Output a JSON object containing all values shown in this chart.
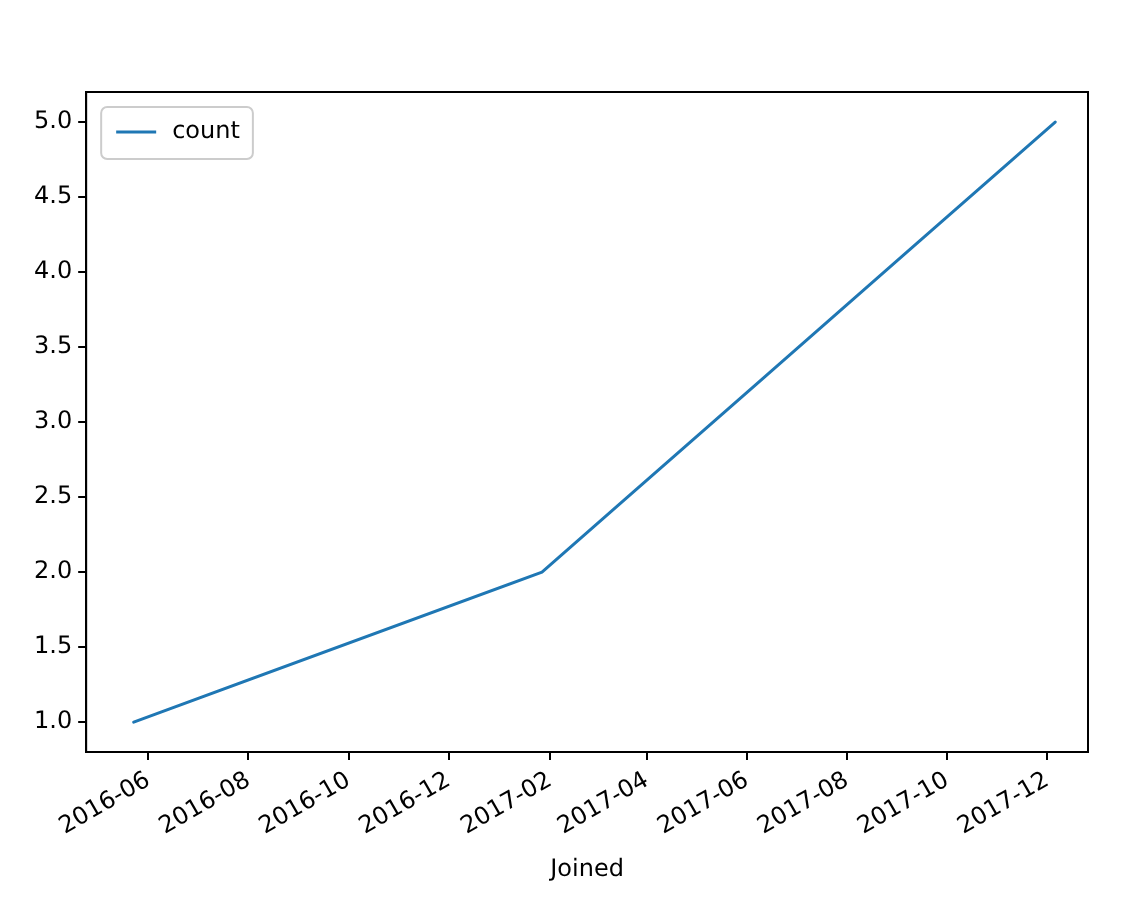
{
  "chart_data": {
    "type": "line",
    "xlabel": "Joined",
    "x": [
      "2016-05-23",
      "2017-01-27",
      "2017-12-06"
    ],
    "series": [
      {
        "name": "count",
        "color": "#1f77b4",
        "values": [
          1,
          2,
          5
        ]
      }
    ],
    "xlim": [
      "2016-04-24",
      "2017-12-26"
    ],
    "xticks": [
      {
        "value": "2016-06-01",
        "label": "2016-06"
      },
      {
        "value": "2016-08-01",
        "label": "2016-08"
      },
      {
        "value": "2016-10-01",
        "label": "2016-10"
      },
      {
        "value": "2016-12-01",
        "label": "2016-12"
      },
      {
        "value": "2017-02-01",
        "label": "2017-02"
      },
      {
        "value": "2017-04-01",
        "label": "2017-04"
      },
      {
        "value": "2017-06-01",
        "label": "2017-06"
      },
      {
        "value": "2017-08-01",
        "label": "2017-08"
      },
      {
        "value": "2017-10-01",
        "label": "2017-10"
      },
      {
        "value": "2017-12-01",
        "label": "2017-12"
      }
    ],
    "ylim": [
      0.8,
      5.2
    ],
    "yticks": [
      {
        "value": 1,
        "label": "1.0"
      },
      {
        "value": 1.5,
        "label": "1.5"
      },
      {
        "value": 2,
        "label": "2.0"
      },
      {
        "value": 2.5,
        "label": "2.5"
      },
      {
        "value": 3,
        "label": "3.0"
      },
      {
        "value": 3.5,
        "label": "3.5"
      },
      {
        "value": 4,
        "label": "4.0"
      },
      {
        "value": 4.5,
        "label": "4.5"
      },
      {
        "value": 5,
        "label": "5.0"
      }
    ],
    "grid": false,
    "legend": "top left",
    "marker": "none",
    "line_style": "solid"
  }
}
